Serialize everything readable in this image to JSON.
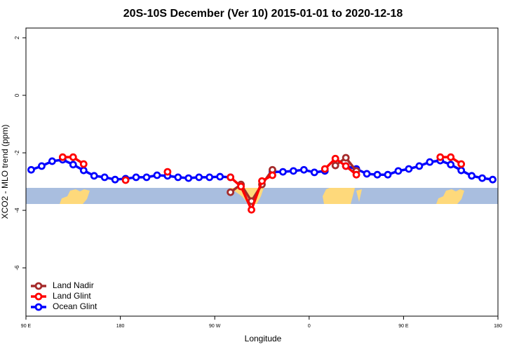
{
  "chart_data": {
    "type": "line",
    "title": "20S-10S December (Ver 10)   2015-01-01 to 2020-12-18",
    "x_label": "Longitude",
    "y_label": "XCO2 - MLO trend (ppm)",
    "x": [
      95,
      105,
      115,
      125,
      135,
      145,
      155,
      165,
      175,
      185,
      195,
      205,
      215,
      225,
      235,
      245,
      255,
      265,
      275,
      285,
      295,
      305,
      315,
      325,
      335,
      345,
      355,
      365,
      375,
      385,
      395,
      405,
      415,
      425,
      435,
      445,
      455,
      465,
      475,
      485,
      495,
      505,
      515,
      525,
      535
    ],
    "series": [
      {
        "name": "Land Nadir",
        "color": "#a52a2a",
        "values": [
          null,
          null,
          null,
          null,
          null,
          null,
          null,
          null,
          null,
          null,
          null,
          null,
          null,
          null,
          null,
          null,
          null,
          null,
          null,
          -3.37,
          -3.1,
          -3.68,
          -3.1,
          -2.59,
          null,
          null,
          null,
          null,
          null,
          -2.44,
          -2.17,
          -2.63,
          null,
          null,
          null,
          null,
          null,
          null,
          null,
          null,
          null,
          null,
          null,
          null,
          null
        ]
      },
      {
        "name": "Land Glint",
        "color": "#ff0000",
        "values": [
          null,
          null,
          null,
          -2.15,
          -2.15,
          -2.39,
          null,
          null,
          null,
          -2.95,
          null,
          null,
          null,
          -2.66,
          null,
          null,
          null,
          null,
          null,
          -2.85,
          -3.17,
          -3.98,
          -2.98,
          -2.78,
          null,
          null,
          null,
          null,
          -2.56,
          -2.2,
          -2.46,
          -2.76,
          null,
          null,
          null,
          null,
          null,
          null,
          null,
          -2.15,
          -2.15,
          -2.39,
          null,
          null,
          null
        ]
      },
      {
        "name": "Ocean Glint",
        "color": "#0000ff",
        "values": [
          -2.59,
          -2.46,
          -2.29,
          -2.24,
          -2.41,
          -2.61,
          -2.8,
          -2.85,
          -2.93,
          -2.9,
          -2.85,
          -2.85,
          -2.78,
          -2.8,
          -2.85,
          -2.88,
          -2.85,
          -2.85,
          -2.83,
          -2.85,
          null,
          null,
          null,
          -2.66,
          -2.66,
          -2.63,
          -2.59,
          -2.68,
          -2.63,
          null,
          -2.46,
          -2.56,
          -2.73,
          -2.76,
          -2.76,
          -2.63,
          -2.56,
          -2.46,
          -2.32,
          -2.27,
          -2.41,
          -2.61,
          -2.8,
          -2.88,
          -2.93
        ]
      }
    ],
    "xlim": [
      90,
      540
    ],
    "xticks": [
      {
        "value": 90,
        "label": "90 E"
      },
      180,
      {
        "value": 270,
        "label": "90 W"
      },
      {
        "value": 360,
        "label": "0"
      },
      {
        "value": 450,
        "label": "90 E"
      },
      {
        "value": 540,
        "label": "180"
      }
    ],
    "ylim": [
      -7.68,
      2.34
    ],
    "yticks": [
      -6,
      -4,
      -2,
      0,
      2
    ],
    "legend": "lower-left"
  }
}
